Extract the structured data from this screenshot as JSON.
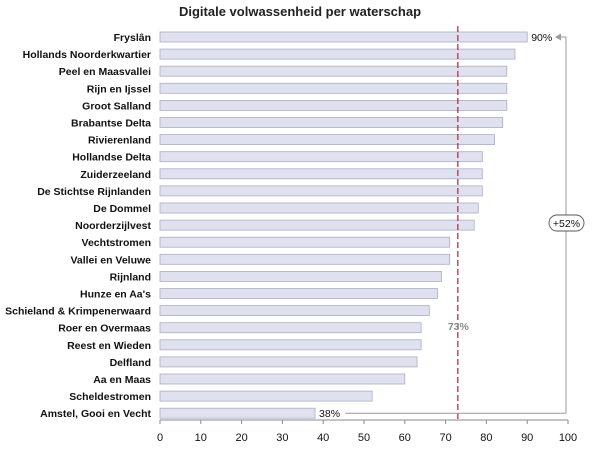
{
  "chart_data": {
    "type": "bar",
    "orientation": "horizontal",
    "title": "Digitale volwassenheid per waterschap",
    "categories": [
      "Fryslân",
      "Hollands Noorderkwartier",
      "Peel en Maasvallei",
      "Rijn en Ijssel",
      "Groot Salland",
      "Brabantse Delta",
      "Rivierenland",
      "Hollandse Delta",
      "Zuiderzeeland",
      "De Stichtse Rijnlanden",
      "De Dommel",
      "Noorderzijlvest",
      "Vechtstromen",
      "Vallei en Veluwe",
      "Rijnland",
      "Hunze en Aa's",
      "Schieland & Krimpenerwaard",
      "Roer en Overmaas",
      "Reest en Wieden",
      "Delfland",
      "Aa en Maas",
      "Scheldestromen",
      "Amstel, Gooi en Vecht"
    ],
    "values": [
      90,
      87,
      85,
      85,
      85,
      84,
      82,
      79,
      79,
      79,
      78,
      77,
      71,
      71,
      69,
      68,
      66,
      64,
      64,
      63,
      60,
      52,
      38
    ],
    "value_labels": {
      "first": "90%",
      "last": "38%"
    },
    "xlim": [
      0,
      100
    ],
    "xticks": [
      "0",
      "10",
      "20",
      "30",
      "40",
      "50",
      "60",
      "70",
      "80",
      "90",
      "100"
    ],
    "average": {
      "value": 73,
      "label": "73%"
    },
    "difference": {
      "label": "+52%"
    },
    "grid": false,
    "colors": {
      "bar_fill": "#dfe2ee",
      "bar_stroke": "#a9aec4",
      "average_line": "#b0233f",
      "bracket": "#9a9a9a",
      "axis": "#8a8a8a"
    }
  }
}
